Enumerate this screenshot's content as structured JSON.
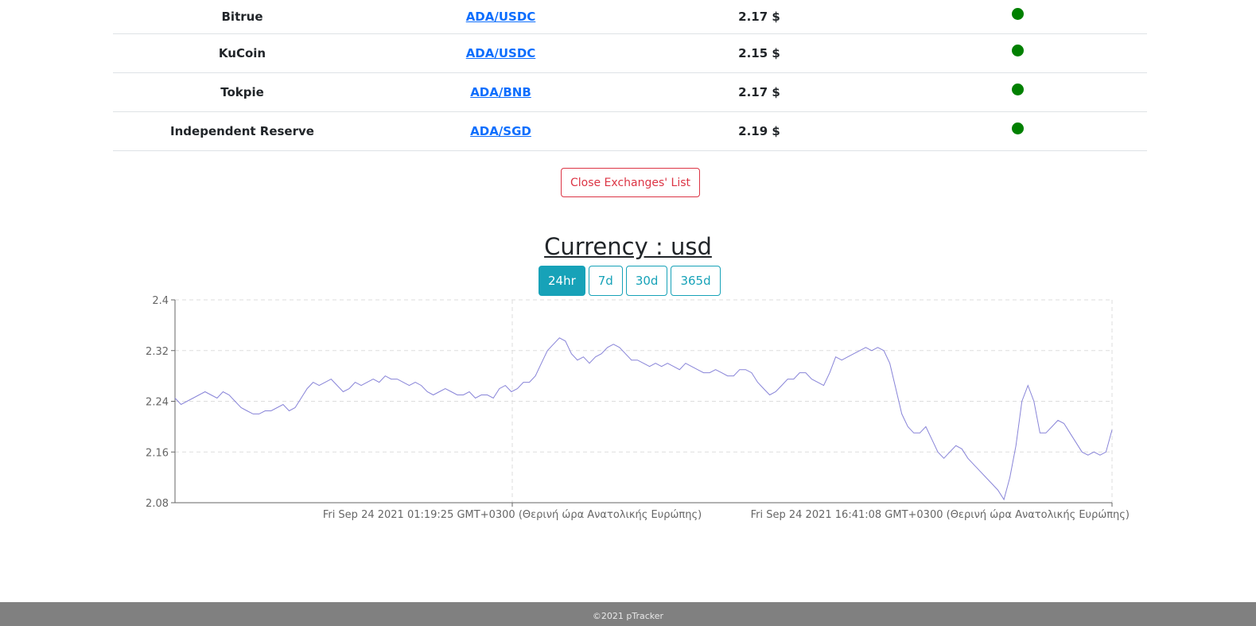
{
  "exchanges": [
    {
      "name": "Bitrue",
      "pair": "ADA/USDC",
      "price": "2.17 $",
      "status": "active"
    },
    {
      "name": "KuCoin",
      "pair": "ADA/USDC",
      "price": "2.15 $",
      "status": "active"
    },
    {
      "name": "Tokpie",
      "pair": "ADA/BNB",
      "price": "2.17 $",
      "status": "active"
    },
    {
      "name": "Independent Reserve",
      "pair": "ADA/SGD",
      "price": "2.19 $",
      "status": "active"
    }
  ],
  "close_button": "Close Exchanges' List",
  "currency_title": "Currency : usd",
  "periods": [
    {
      "label": "24hr",
      "active": true
    },
    {
      "label": "7d",
      "active": false
    },
    {
      "label": "30d",
      "active": false
    },
    {
      "label": "365d",
      "active": false
    }
  ],
  "colors": {
    "line": "#8884d8",
    "status_dot": "#008000",
    "accent": "#17a2b8",
    "danger": "#dc3545"
  },
  "chart_data": {
    "type": "line",
    "ylim": [
      2.08,
      2.4
    ],
    "y_ticks": [
      "2.4",
      "2.32",
      "2.24",
      "2.16",
      "2.08"
    ],
    "x_ticks": [
      "Fri Sep 24 2021 01:19:25 GMT+0300 (Θερινή ώρα Ανατολικής Ευρώπης)",
      "Fri Sep 24 2021 16:41:08 GMT+0300 (Θερινή ώρα Ανατολικής Ευρώπης)"
    ],
    "grid": true,
    "series": [
      {
        "values": [
          2.245,
          2.235,
          2.24,
          2.245,
          2.25,
          2.255,
          2.25,
          2.245,
          2.255,
          2.25,
          2.24,
          2.23,
          2.225,
          2.22,
          2.22,
          2.225,
          2.225,
          2.23,
          2.235,
          2.225,
          2.23,
          2.245,
          2.26,
          2.27,
          2.265,
          2.27,
          2.275,
          2.265,
          2.255,
          2.26,
          2.27,
          2.265,
          2.27,
          2.275,
          2.27,
          2.28,
          2.275,
          2.275,
          2.27,
          2.265,
          2.27,
          2.265,
          2.255,
          2.25,
          2.255,
          2.26,
          2.255,
          2.25,
          2.25,
          2.255,
          2.245,
          2.25,
          2.25,
          2.245,
          2.26,
          2.265,
          2.255,
          2.26,
          2.27,
          2.27,
          2.28,
          2.3,
          2.32,
          2.33,
          2.34,
          2.335,
          2.315,
          2.305,
          2.31,
          2.3,
          2.31,
          2.315,
          2.325,
          2.33,
          2.325,
          2.315,
          2.305,
          2.305,
          2.3,
          2.295,
          2.3,
          2.295,
          2.3,
          2.295,
          2.29,
          2.3,
          2.295,
          2.29,
          2.285,
          2.285,
          2.29,
          2.285,
          2.28,
          2.28,
          2.29,
          2.29,
          2.285,
          2.27,
          2.26,
          2.25,
          2.255,
          2.265,
          2.275,
          2.275,
          2.285,
          2.285,
          2.275,
          2.27,
          2.265,
          2.285,
          2.31,
          2.305,
          2.31,
          2.315,
          2.32,
          2.325,
          2.32,
          2.325,
          2.32,
          2.3,
          2.26,
          2.22,
          2.2,
          2.19,
          2.19,
          2.2,
          2.18,
          2.16,
          2.15,
          2.16,
          2.17,
          2.165,
          2.15,
          2.14,
          2.13,
          2.12,
          2.11,
          2.1,
          2.085,
          2.12,
          2.17,
          2.24,
          2.265,
          2.24,
          2.19,
          2.19,
          2.2,
          2.21,
          2.205,
          2.19,
          2.175,
          2.16,
          2.155,
          2.16,
          2.155,
          2.16,
          2.195
        ]
      }
    ]
  },
  "footer": "©2021 pTracker"
}
